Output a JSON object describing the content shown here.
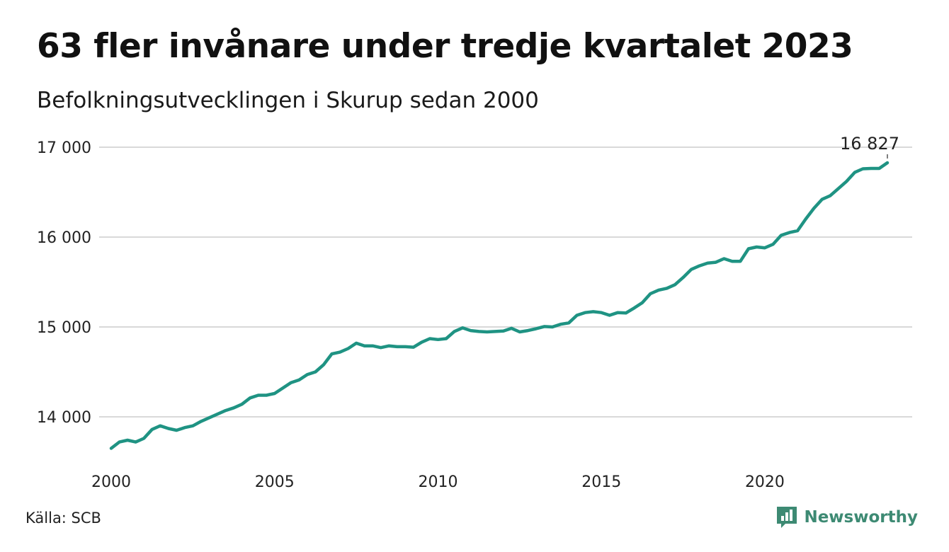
{
  "title": "63 fler invånare under tredje kvartalet 2023",
  "subtitle": "Befolkningsutvecklingen i Skurup sedan 2000",
  "source": "Källa: SCB",
  "brand": {
    "name": "Newsworthy",
    "icon": "newsworthy-logo-icon",
    "color": "#3d8a73"
  },
  "colors": {
    "line": "#1f9383",
    "grid": "#d9d9d9"
  },
  "chart_data": {
    "type": "line",
    "xlim": [
      2000,
      2023.75
    ],
    "ylim": [
      13500,
      17100
    ],
    "x_ticks": [
      2000,
      2005,
      2010,
      2015,
      2020
    ],
    "x_tick_labels": [
      "2000",
      "2005",
      "2010",
      "2015",
      "2020"
    ],
    "y_ticks": [
      14000,
      15000,
      16000,
      17000
    ],
    "y_tick_labels": [
      "14 000",
      "15 000",
      "16 000",
      "17 000"
    ],
    "grid": "horizontal",
    "end_label": "16 827",
    "series": [
      {
        "x": [
          2000.0,
          2000.25,
          2000.5,
          2000.75,
          2001.0,
          2001.25,
          2001.5,
          2001.75,
          2002.0,
          2002.25,
          2002.5,
          2002.75,
          2003.0,
          2003.25,
          2003.5,
          2003.75,
          2004.0,
          2004.25,
          2004.5,
          2004.75,
          2005.0,
          2005.25,
          2005.5,
          2005.75,
          2006.0,
          2006.25,
          2006.5,
          2006.75,
          2007.0,
          2007.25,
          2007.5,
          2007.75,
          2008.0,
          2008.25,
          2008.5,
          2008.75,
          2009.0,
          2009.25,
          2009.5,
          2009.75,
          2010.0,
          2010.25,
          2010.5,
          2010.75,
          2011.0,
          2011.25,
          2011.5,
          2011.75,
          2012.0,
          2012.25,
          2012.5,
          2012.75,
          2013.0,
          2013.25,
          2013.5,
          2013.75,
          2014.0,
          2014.25,
          2014.5,
          2014.75,
          2015.0,
          2015.25,
          2015.5,
          2015.75,
          2016.0,
          2016.25,
          2016.5,
          2016.75,
          2017.0,
          2017.25,
          2017.5,
          2017.75,
          2018.0,
          2018.25,
          2018.5,
          2018.75,
          2019.0,
          2019.25,
          2019.5,
          2019.75,
          2020.0,
          2020.25,
          2020.5,
          2020.75,
          2021.0,
          2021.25,
          2021.5,
          2021.75,
          2022.0,
          2022.25,
          2022.5,
          2022.75,
          2023.0,
          2023.25,
          2023.5,
          2023.75
        ],
        "y": [
          13650,
          13720,
          13740,
          13720,
          13760,
          13860,
          13900,
          13870,
          13850,
          13880,
          13900,
          13950,
          13990,
          14030,
          14070,
          14100,
          14140,
          14210,
          14240,
          14240,
          14260,
          14320,
          14380,
          14410,
          14470,
          14500,
          14580,
          14700,
          14720,
          14760,
          14820,
          14790,
          14790,
          14770,
          14790,
          14780,
          14780,
          14775,
          14830,
          14870,
          14860,
          14870,
          14950,
          14990,
          14960,
          14950,
          14945,
          14950,
          14955,
          14985,
          14945,
          14960,
          14980,
          15005,
          15000,
          15030,
          15045,
          15130,
          15160,
          15170,
          15160,
          15130,
          15160,
          15155,
          15210,
          15270,
          15370,
          15410,
          15430,
          15470,
          15550,
          15640,
          15680,
          15710,
          15720,
          15760,
          15730,
          15730,
          15870,
          15890,
          15880,
          15920,
          16020,
          16050,
          16070,
          16200,
          16320,
          16420,
          16460,
          16540,
          16620,
          16720,
          16760,
          16764,
          16764,
          16827
        ]
      }
    ]
  }
}
